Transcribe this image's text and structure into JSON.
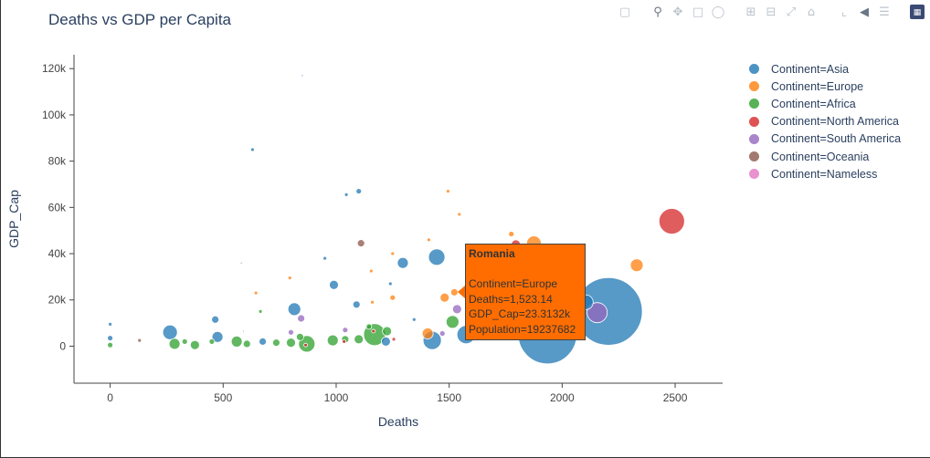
{
  "modebar": {
    "icons": [
      "camera-icon",
      "zoom-icon",
      "pan-icon",
      "box-select-icon",
      "lasso-select-icon",
      "zoom-in-icon",
      "zoom-out-icon",
      "autoscale-icon",
      "reset-axes-icon",
      "spike-lines-icon",
      "hover-closest-icon",
      "hover-compare-icon",
      "plotly-logo-icon"
    ]
  },
  "chart_data": {
    "type": "scatter",
    "title": "Deaths vs GDP per Capita",
    "xlabel": "Deaths",
    "ylabel": "GDP_Cap",
    "xlim": [
      -160,
      2710
    ],
    "ylim": [
      -16000,
      126000
    ],
    "x_ticks": [
      0,
      500,
      1000,
      1500,
      2000,
      2500
    ],
    "x_tick_labels": [
      "0",
      "500",
      "1000",
      "1500",
      "2000",
      "2500"
    ],
    "y_ticks": [
      0,
      20000,
      40000,
      60000,
      80000,
      100000,
      120000
    ],
    "y_tick_labels": [
      "0",
      "20k",
      "40k",
      "60k",
      "80k",
      "100k",
      "120k"
    ],
    "grid": false,
    "legend_position": "top-right",
    "series": [
      {
        "name": "Continent=Asia",
        "color": "#1f77b4",
        "points": [
          {
            "x": 1935,
            "y": 5000,
            "size": 32
          },
          {
            "x": 2205,
            "y": 15000,
            "size": 37
          },
          {
            "x": 1575,
            "y": 5000,
            "size": 10
          },
          {
            "x": 1425,
            "y": 2500,
            "size": 10
          },
          {
            "x": 1445,
            "y": 38500,
            "size": 9
          },
          {
            "x": 1295,
            "y": 36000,
            "size": 6
          },
          {
            "x": 2105,
            "y": 19000,
            "size": 8
          },
          {
            "x": 265,
            "y": 6000,
            "size": 8
          },
          {
            "x": 815,
            "y": 16000,
            "size": 7
          },
          {
            "x": 475,
            "y": 4000,
            "size": 6
          },
          {
            "x": 990,
            "y": 26500,
            "size": 5
          },
          {
            "x": 1100,
            "y": 67000,
            "size": 3
          },
          {
            "x": 630,
            "y": 85000,
            "size": 2
          },
          {
            "x": 850,
            "y": 117000,
            "size": 1
          },
          {
            "x": 1045,
            "y": 65500,
            "size": 2
          },
          {
            "x": 950,
            "y": 38000,
            "size": 2
          },
          {
            "x": 1090,
            "y": 18000,
            "size": 4
          },
          {
            "x": 1220,
            "y": 2000,
            "size": 5
          },
          {
            "x": 0,
            "y": 9500,
            "size": 2
          },
          {
            "x": 0,
            "y": 3500,
            "size": 3
          },
          {
            "x": 465,
            "y": 11500,
            "size": 4
          },
          {
            "x": 675,
            "y": 2000,
            "size": 4
          },
          {
            "x": 1240,
            "y": 27000,
            "size": 2
          },
          {
            "x": 1345,
            "y": 11500,
            "size": 2
          }
        ]
      },
      {
        "name": "Continent=Europe",
        "color": "#ff7f0e",
        "points": [
          {
            "x": 1875,
            "y": 44500,
            "size": 8
          },
          {
            "x": 2035,
            "y": 39000,
            "size": 7
          },
          {
            "x": 2330,
            "y": 35000,
            "size": 7
          },
          {
            "x": 1405,
            "y": 5500,
            "size": 6
          },
          {
            "x": 1860,
            "y": 39000,
            "size": 6
          },
          {
            "x": 1495,
            "y": 67000,
            "size": 2
          },
          {
            "x": 1545,
            "y": 57000,
            "size": 2
          },
          {
            "x": 1775,
            "y": 48500,
            "size": 3
          },
          {
            "x": 1740,
            "y": 41000,
            "size": 3
          },
          {
            "x": 1480,
            "y": 21000,
            "size": 5
          },
          {
            "x": 1523,
            "y": 23300,
            "size": 4
          },
          {
            "x": 1410,
            "y": 46000,
            "size": 2
          },
          {
            "x": 1155,
            "y": 32500,
            "size": 2
          },
          {
            "x": 1250,
            "y": 40000,
            "size": 2
          },
          {
            "x": 1160,
            "y": 19000,
            "size": 2
          },
          {
            "x": 1250,
            "y": 21000,
            "size": 3
          },
          {
            "x": 645,
            "y": 23000,
            "size": 2
          },
          {
            "x": 795,
            "y": 29500,
            "size": 2
          },
          {
            "x": 2035,
            "y": 38000,
            "size": 7
          }
        ]
      },
      {
        "name": "Continent=Africa",
        "color": "#2ca02c",
        "points": [
          {
            "x": 1170,
            "y": 5000,
            "size": 12
          },
          {
            "x": 870,
            "y": 1000,
            "size": 9
          },
          {
            "x": 1515,
            "y": 10500,
            "size": 7
          },
          {
            "x": 285,
            "y": 1000,
            "size": 6
          },
          {
            "x": 375,
            "y": 500,
            "size": 5
          },
          {
            "x": 560,
            "y": 2000,
            "size": 6
          },
          {
            "x": 985,
            "y": 2500,
            "size": 6
          },
          {
            "x": 1100,
            "y": 3000,
            "size": 5
          },
          {
            "x": 1225,
            "y": 6500,
            "size": 5
          },
          {
            "x": 1040,
            "y": 3000,
            "size": 4
          },
          {
            "x": 605,
            "y": 1000,
            "size": 4
          },
          {
            "x": 800,
            "y": 1500,
            "size": 5
          },
          {
            "x": 735,
            "y": 1500,
            "size": 4
          },
          {
            "x": 1145,
            "y": 8500,
            "size": 3
          },
          {
            "x": 450,
            "y": 2000,
            "size": 3
          },
          {
            "x": 840,
            "y": 4000,
            "size": 4
          },
          {
            "x": 665,
            "y": 15000,
            "size": 2
          },
          {
            "x": 0,
            "y": 500,
            "size": 3
          },
          {
            "x": 330,
            "y": 2000,
            "size": 3
          }
        ]
      },
      {
        "name": "Continent=North America",
        "color": "#d62728",
        "points": [
          {
            "x": 2485,
            "y": 54000,
            "size": 14
          },
          {
            "x": 1795,
            "y": 44000,
            "size": 5
          },
          {
            "x": 1255,
            "y": 3000,
            "size": 2
          },
          {
            "x": 1165,
            "y": 6500,
            "size": 2
          },
          {
            "x": 1035,
            "y": 2000,
            "size": 2
          },
          {
            "x": 865,
            "y": 500,
            "size": 2
          }
        ]
      },
      {
        "name": "Continent=South America",
        "color": "#9467bd",
        "points": [
          {
            "x": 2155,
            "y": 14500,
            "size": 11
          },
          {
            "x": 1535,
            "y": 16000,
            "size": 5
          },
          {
            "x": 1470,
            "y": 5500,
            "size": 3
          },
          {
            "x": 845,
            "y": 12000,
            "size": 4
          },
          {
            "x": 800,
            "y": 6000,
            "size": 3
          },
          {
            "x": 1040,
            "y": 7000,
            "size": 3
          }
        ]
      },
      {
        "name": "Continent=Oceania",
        "color": "#8c564b",
        "points": [
          {
            "x": 1110,
            "y": 44500,
            "size": 4
          },
          {
            "x": 130,
            "y": 2500,
            "size": 2
          },
          {
            "x": 580,
            "y": 36000,
            "size": 1
          }
        ]
      },
      {
        "name": "Continent=Nameless",
        "color": "#e377c2",
        "points": [
          {
            "x": 590,
            "y": 6500,
            "size": 1
          }
        ]
      }
    ],
    "hover": {
      "name": "Romania",
      "lines": [
        "Continent=Europe",
        "Deaths=1,523.14",
        "GDP_Cap=23.3132k",
        "Population=19237682"
      ],
      "color": "#ff6d00"
    }
  }
}
